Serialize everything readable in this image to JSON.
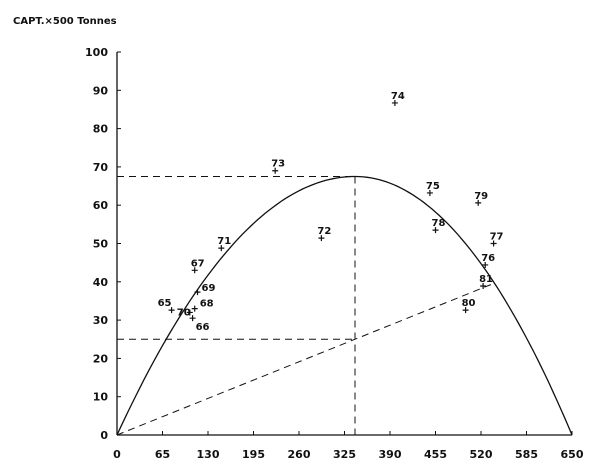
{
  "chart_data": {
    "type": "scatter",
    "title": "",
    "ylabel": "CAPT.×500 Tonnes",
    "xlabel": "",
    "xlim": [
      0,
      650
    ],
    "ylim": [
      0,
      100
    ],
    "x_ticks": [
      "0",
      "65",
      "130",
      "195",
      "260",
      "325",
      "390",
      "455",
      "520",
      "585",
      "650"
    ],
    "y_ticks": [
      "0",
      "10",
      "20",
      "30",
      "40",
      "50",
      "60",
      "70",
      "80",
      "90",
      "100"
    ],
    "grid": false,
    "points": [
      {
        "label": "65",
        "x": 78,
        "y": 32.6
      },
      {
        "label": "66",
        "x": 108,
        "y": 30.5
      },
      {
        "label": "67",
        "x": 111,
        "y": 43
      },
      {
        "label": "68",
        "x": 111,
        "y": 33
      },
      {
        "label": "69",
        "x": 115,
        "y": 37.3
      },
      {
        "label": "70",
        "x": 104,
        "y": 32
      },
      {
        "label": "71",
        "x": 149,
        "y": 48.8
      },
      {
        "label": "72",
        "x": 292,
        "y": 51.4
      },
      {
        "label": "73",
        "x": 226,
        "y": 69
      },
      {
        "label": "74",
        "x": 397,
        "y": 86.7
      },
      {
        "label": "75",
        "x": 447,
        "y": 63.2
      },
      {
        "label": "76",
        "x": 526,
        "y": 44.4
      },
      {
        "label": "77",
        "x": 538,
        "y": 50
      },
      {
        "label": "78",
        "x": 455,
        "y": 53.5
      },
      {
        "label": "79",
        "x": 516,
        "y": 60.6
      },
      {
        "label": "80",
        "x": 498,
        "y": 32.6
      },
      {
        "label": "81",
        "x": 523,
        "y": 38.9
      }
    ],
    "curve": {
      "type": "parabola",
      "x_start": 0,
      "x_end": 650,
      "x_at_max": 340,
      "y_max": 67.5
    },
    "reference_lines": {
      "max_catch_level": 67.5,
      "effort_at_max": 340,
      "lower_catch_level": 25,
      "cost_line": {
        "from": [
          0,
          0
        ],
        "to": [
          540,
          39.7
        ]
      }
    }
  }
}
